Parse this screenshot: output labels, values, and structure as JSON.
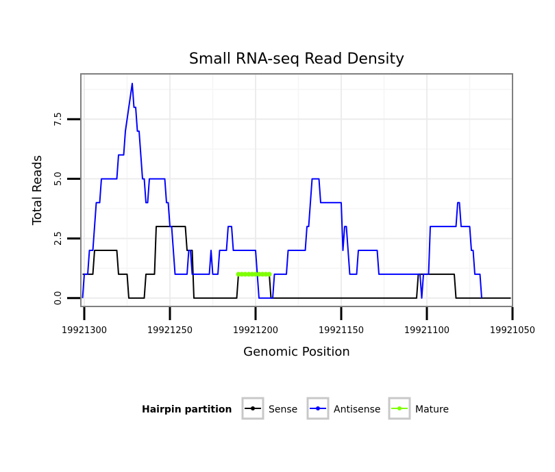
{
  "chart_data": {
    "type": "line",
    "title": "Small RNA-seq Read Density",
    "xlabel": "Genomic Position",
    "ylabel": "Total Reads",
    "xlim": [
      19921302,
      19921050
    ],
    "ylim": [
      -0.35,
      9.4
    ],
    "x_reversed": true,
    "grid": true,
    "x_ticks": [
      19921300,
      19921250,
      19921200,
      19921150,
      19921100,
      19921050
    ],
    "x_tick_labels": [
      "19921300",
      "19921250",
      "19921200",
      "19921150",
      "19921100",
      "19921050"
    ],
    "y_ticks": [
      0,
      2.5,
      5,
      7.5
    ],
    "y_tick_labels": [
      "0.0",
      "2.5",
      "5.0",
      "7.5"
    ],
    "legend": {
      "title": "Hairpin partition",
      "position": "bottom",
      "entries": [
        {
          "name": "Sense",
          "color": "#000000"
        },
        {
          "name": "Antisense",
          "color": "#0000ff"
        },
        {
          "name": "Mature",
          "color": "#7fff00"
        }
      ]
    },
    "series": [
      {
        "name": "Sense",
        "color": "#000000",
        "points": [
          [
            19921301,
            1
          ],
          [
            19921295,
            1
          ],
          [
            19921294,
            2
          ],
          [
            19921281,
            2
          ],
          [
            19921280,
            1
          ],
          [
            19921275,
            1
          ],
          [
            19921274,
            0
          ],
          [
            19921265,
            0
          ],
          [
            19921264,
            1
          ],
          [
            19921259,
            1
          ],
          [
            19921258,
            3
          ],
          [
            19921241,
            3
          ],
          [
            19921240,
            2
          ],
          [
            19921237,
            2
          ],
          [
            19921236,
            0
          ],
          [
            19921211,
            0
          ],
          [
            19921210,
            1
          ],
          [
            19921192,
            1
          ],
          [
            19921191,
            0
          ],
          [
            19921106,
            0
          ],
          [
            19921105,
            1
          ],
          [
            19921084,
            1
          ],
          [
            19921083,
            0
          ],
          [
            19921051,
            0
          ]
        ]
      },
      {
        "name": "Antisense",
        "color": "#0000ff",
        "points": [
          [
            19921301,
            0
          ],
          [
            19921300,
            1
          ],
          [
            19921298,
            1
          ],
          [
            19921297,
            2
          ],
          [
            19921295,
            2
          ],
          [
            19921294,
            3
          ],
          [
            19921293,
            4
          ],
          [
            19921291,
            4
          ],
          [
            19921290,
            5
          ],
          [
            19921281,
            5
          ],
          [
            19921280,
            6
          ],
          [
            19921277,
            6
          ],
          [
            19921276,
            7
          ],
          [
            19921274,
            8
          ],
          [
            19921272,
            9
          ],
          [
            19921271,
            8
          ],
          [
            19921270,
            8
          ],
          [
            19921269,
            7
          ],
          [
            19921268,
            7
          ],
          [
            19921267,
            6
          ],
          [
            19921266,
            5
          ],
          [
            19921265,
            5
          ],
          [
            19921264,
            4
          ],
          [
            19921263,
            4
          ],
          [
            19921262,
            5
          ],
          [
            19921253,
            5
          ],
          [
            19921252,
            4
          ],
          [
            19921251,
            4
          ],
          [
            19921250,
            3
          ],
          [
            19921249,
            3
          ],
          [
            19921248,
            2
          ],
          [
            19921247,
            1
          ],
          [
            19921240,
            1
          ],
          [
            19921239,
            2
          ],
          [
            19921238,
            2
          ],
          [
            19921237,
            1
          ],
          [
            19921227,
            1
          ],
          [
            19921226,
            2
          ],
          [
            19921225,
            1
          ],
          [
            19921222,
            1
          ],
          [
            19921221,
            2
          ],
          [
            19921217,
            2
          ],
          [
            19921216,
            3
          ],
          [
            19921214,
            3
          ],
          [
            19921213,
            2
          ],
          [
            19921200,
            2
          ],
          [
            19921199,
            1
          ],
          [
            19921198,
            0
          ],
          [
            19921190,
            0
          ],
          [
            19921189,
            1
          ],
          [
            19921182,
            1
          ],
          [
            19921181,
            2
          ],
          [
            19921171,
            2
          ],
          [
            19921170,
            3
          ],
          [
            19921169,
            3
          ],
          [
            19921168,
            4
          ],
          [
            19921167,
            5
          ],
          [
            19921163,
            5
          ],
          [
            19921162,
            4
          ],
          [
            19921150,
            4
          ],
          [
            19921149,
            2
          ],
          [
            19921148,
            3
          ],
          [
            19921147,
            3
          ],
          [
            19921146,
            2
          ],
          [
            19921145,
            1
          ],
          [
            19921141,
            1
          ],
          [
            19921140,
            2
          ],
          [
            19921129,
            2
          ],
          [
            19921128,
            1
          ],
          [
            19921105,
            1
          ],
          [
            19921104,
            1
          ],
          [
            19921103,
            0
          ],
          [
            19921102,
            1
          ],
          [
            19921099,
            1
          ],
          [
            19921098,
            3
          ],
          [
            19921083,
            3
          ],
          [
            19921082,
            4
          ],
          [
            19921081,
            4
          ],
          [
            19921080,
            3
          ],
          [
            19921075,
            3
          ],
          [
            19921074,
            2
          ],
          [
            19921073,
            2
          ],
          [
            19921072,
            1
          ],
          [
            19921069,
            1
          ],
          [
            19921068,
            0
          ]
        ]
      },
      {
        "name": "Mature",
        "color": "#7fff00",
        "points": [
          [
            19921210,
            1
          ],
          [
            19921208,
            1
          ],
          [
            19921206,
            1
          ],
          [
            19921204,
            1
          ],
          [
            19921202,
            1
          ],
          [
            19921200,
            1
          ],
          [
            19921198,
            1
          ],
          [
            19921196,
            1
          ],
          [
            19921194,
            1
          ],
          [
            19921192,
            1
          ]
        ]
      }
    ]
  }
}
